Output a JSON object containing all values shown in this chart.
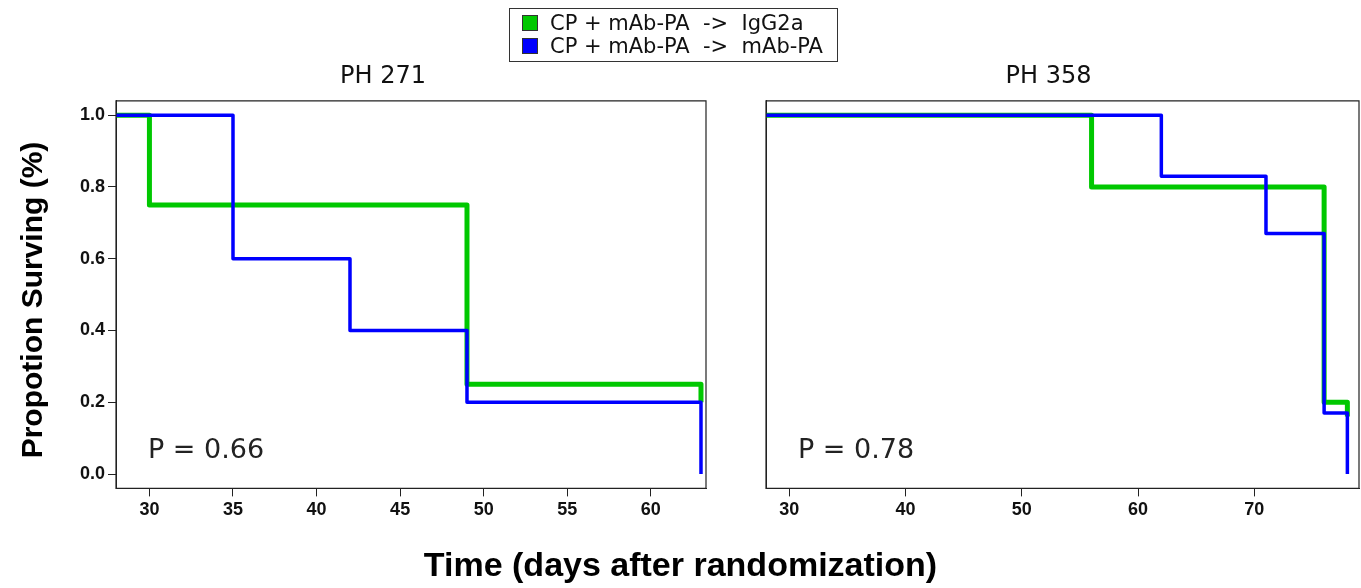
{
  "chart_data": [
    {
      "type": "step",
      "title": "PH 271",
      "xlabel": "Time (days after randomization)",
      "ylabel": "Propotion Surving (%)",
      "legend": "top",
      "xlim": [
        28,
        63.3
      ],
      "xticks": [
        30,
        35,
        40,
        45,
        50,
        55,
        60
      ],
      "ylim": [
        -0.04,
        1.04
      ],
      "yticks": [
        {
          "value": 0,
          "label": "0.0"
        },
        {
          "value": 0.2,
          "label": "0.2"
        },
        {
          "value": 0.4,
          "label": "0.4"
        },
        {
          "value": 0.6,
          "label": "0.6"
        },
        {
          "value": 0.8,
          "label": "0.8"
        },
        {
          "value": 1,
          "label": "1.0"
        }
      ],
      "annotations": [
        "P = 0.66"
      ],
      "series": [
        {
          "name": "CP + mAb-PA  ->  IgG2a",
          "color": "#00c800",
          "x": [
            28,
            30,
            49,
            63
          ],
          "values": [
            1,
            0.75,
            0.25,
            0.2
          ]
        },
        {
          "name": "CP + mAb-PA  ->  mAb-PA",
          "color": "#0000ff",
          "x": [
            28,
            35,
            42,
            49,
            63
          ],
          "values": [
            1,
            0.6,
            0.4,
            0.2,
            0
          ]
        }
      ]
    },
    {
      "type": "step",
      "title": "PH 358",
      "tick_labels": "x",
      "xlim": [
        28,
        79
      ],
      "xticks": [
        30,
        40,
        50,
        60,
        70
      ],
      "ylim": [
        -0.04,
        1.04
      ],
      "annotations": [
        "P = 0.78"
      ],
      "series": [
        {
          "color": "#00c800",
          "x": [
            28,
            56,
            76,
            78
          ],
          "values": [
            1,
            0.8,
            0.2,
            0.16
          ]
        },
        {
          "color": "#0000ff",
          "x": [
            28,
            62,
            71,
            76,
            78
          ],
          "values": [
            1,
            0.83,
            0.67,
            0.17,
            0
          ]
        }
      ]
    }
  ]
}
